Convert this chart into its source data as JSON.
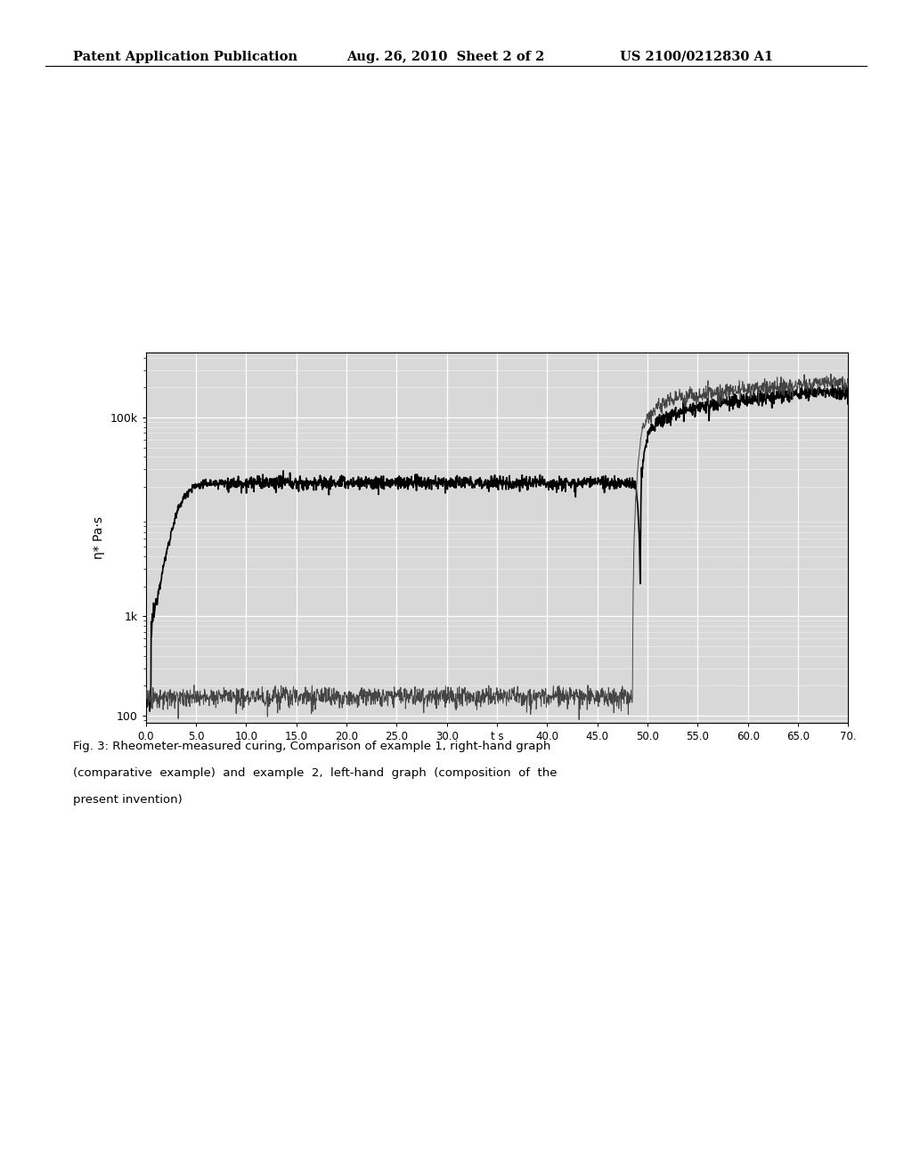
{
  "header_left": "Patent Application Publication",
  "header_mid": "Aug. 26, 2010  Sheet 2 of 2",
  "header_right": "US 2100/0212830 A1",
  "ylabel": "η* Pa·s",
  "xtick_positions": [
    0.0,
    5.0,
    10.0,
    15.0,
    20.0,
    25.0,
    30.0,
    35.0,
    40.0,
    45.0,
    50.0,
    55.0,
    60.0,
    65.0,
    70.0
  ],
  "xtick_labels": [
    "0.0",
    "5.0",
    "10.0",
    "15.0",
    "20.0",
    "25.0",
    "30.0",
    "t s",
    "40.0",
    "45.0",
    "50.0",
    "55.0",
    "60.0",
    "65.0",
    "70."
  ],
  "ytick_values": [
    100,
    1000,
    100000
  ],
  "ytick_labels": [
    "100",
    "1k",
    "100k"
  ],
  "background_color": "#ffffff",
  "plot_bg_color": "#d8d8d8",
  "caption_line1": "Fig. 3: Rheometer-measured curing, Comparison of example 1, right-hand graph",
  "caption_line2": "(comparative  example)  and  example  2,  left-hand  graph  (composition  of  the",
  "caption_line3": "present invention)"
}
